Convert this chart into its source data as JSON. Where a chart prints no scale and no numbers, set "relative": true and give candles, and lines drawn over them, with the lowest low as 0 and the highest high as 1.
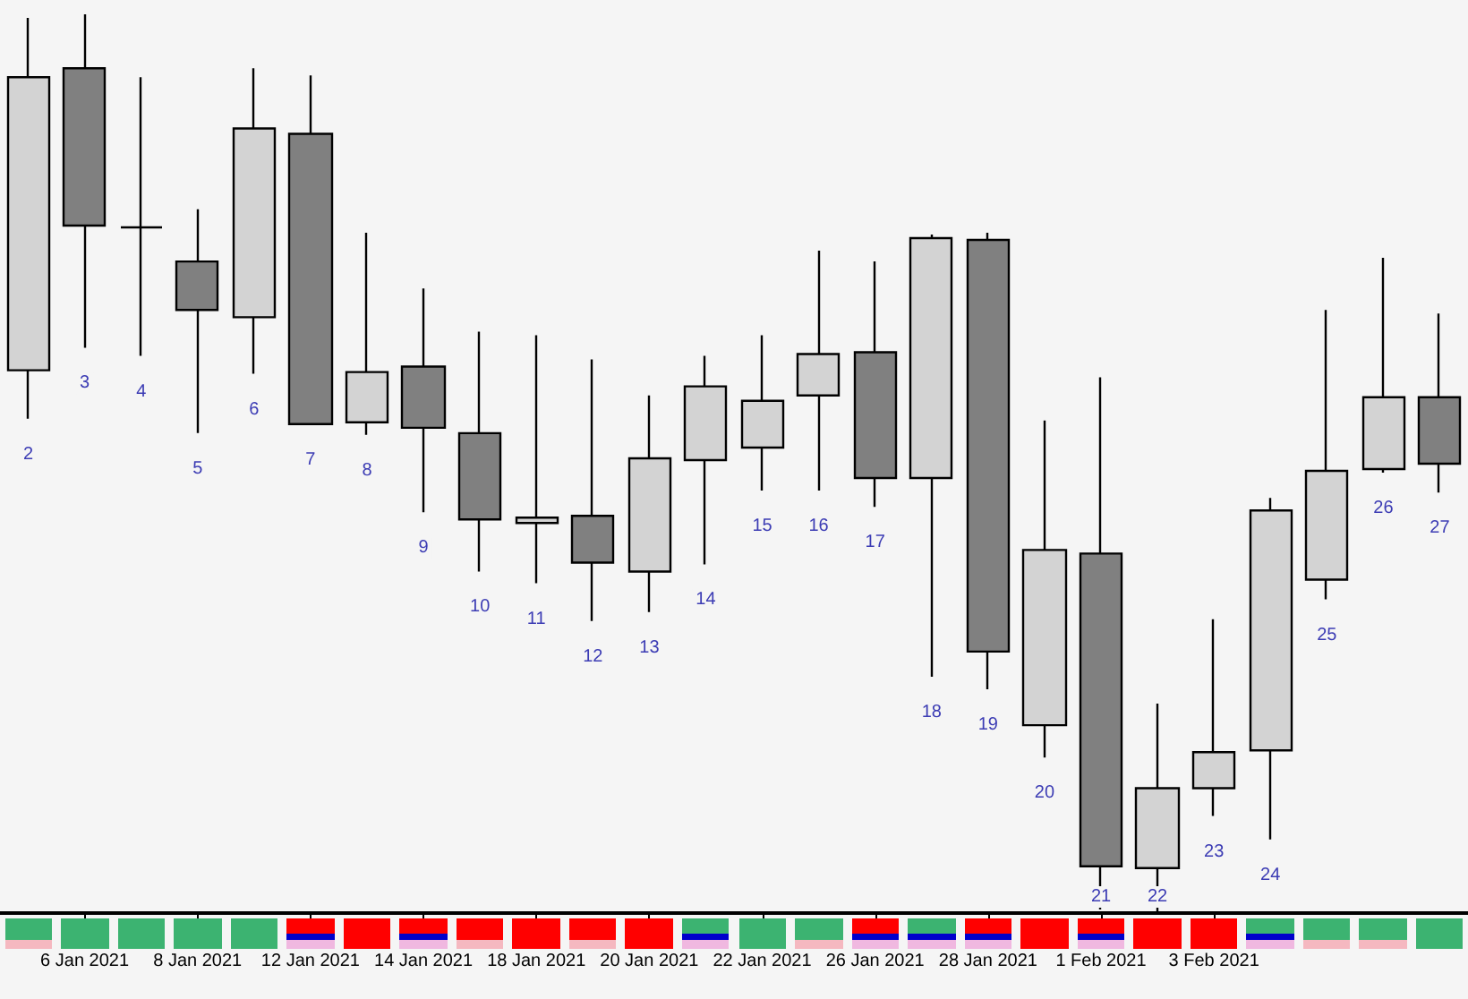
{
  "chart_data": {
    "type": "candlestick",
    "relative": true,
    "categories": [
      null,
      "6 Jan 2021",
      null,
      "8 Jan 2021",
      null,
      "12 Jan 2021",
      null,
      "14 Jan 2021",
      null,
      "18 Jan 2021",
      null,
      "20 Jan 2021",
      null,
      "22 Jan 2021",
      null,
      "26 Jan 2021",
      null,
      "28 Jan 2021",
      null,
      "1 Feb 2021",
      null,
      "3 Feb 2021",
      null,
      null,
      null,
      null
    ],
    "ohlc": [
      [
        0.604,
        0.996,
        0.55,
        0.93
      ],
      [
        0.94,
        1.0,
        0.629,
        0.765
      ],
      [
        0.763,
        0.93,
        0.62,
        0.763
      ],
      [
        0.725,
        0.783,
        0.534,
        0.671
      ],
      [
        0.663,
        0.94,
        0.6,
        0.873
      ],
      [
        0.867,
        0.932,
        0.544,
        0.544
      ],
      [
        0.546,
        0.757,
        0.532,
        0.602
      ],
      [
        0.608,
        0.695,
        0.446,
        0.54
      ],
      [
        0.534,
        0.647,
        0.38,
        0.438
      ],
      [
        0.434,
        0.643,
        0.367,
        0.44
      ],
      [
        0.442,
        0.616,
        0.325,
        0.39
      ],
      [
        0.38,
        0.576,
        0.335,
        0.506
      ],
      [
        0.504,
        0.62,
        0.388,
        0.586
      ],
      [
        0.518,
        0.643,
        0.47,
        0.57
      ],
      [
        0.576,
        0.737,
        0.47,
        0.622
      ],
      [
        0.624,
        0.725,
        0.452,
        0.484
      ],
      [
        0.484,
        0.755,
        0.263,
        0.751
      ],
      [
        0.749,
        0.757,
        0.249,
        0.291
      ],
      [
        0.209,
        0.548,
        0.173,
        0.404
      ],
      [
        0.4,
        0.596,
        0.004,
        0.052
      ],
      [
        0.05,
        0.233,
        0,
        0.139
      ],
      [
        0.139,
        0.327,
        0.108,
        0.179
      ],
      [
        0.181,
        0.462,
        0.082,
        0.448
      ],
      [
        0.371,
        0.671,
        0.349,
        0.492
      ],
      [
        0.494,
        0.729,
        0.49,
        0.574
      ],
      [
        0.574,
        0.667,
        0.468,
        0.5
      ]
    ],
    "colors": [
      "#d3d3d3",
      "#808080",
      "#000000",
      "#808080",
      "#d3d3d3",
      "#808080",
      "#d3d3d3",
      "#808080",
      "#808080",
      "#d3d3d3",
      "#808080",
      "#d3d3d3",
      "#d3d3d3",
      "#d3d3d3",
      "#d3d3d3",
      "#808080",
      "#d3d3d3",
      "#808080",
      "#d3d3d3",
      "#808080",
      "#d3d3d3",
      "#d3d3d3",
      "#d3d3d3",
      "#d3d3d3",
      "#d3d3d3",
      "#808080"
    ],
    "annotations": [
      "2",
      "3",
      "4",
      "5",
      "6",
      "7",
      "8",
      "9",
      "10",
      "11",
      "12",
      "13",
      "14",
      "15",
      "16",
      "17",
      "18",
      "19",
      "20",
      "21",
      "22",
      "23",
      "24",
      "25",
      "26",
      "27"
    ]
  }
}
